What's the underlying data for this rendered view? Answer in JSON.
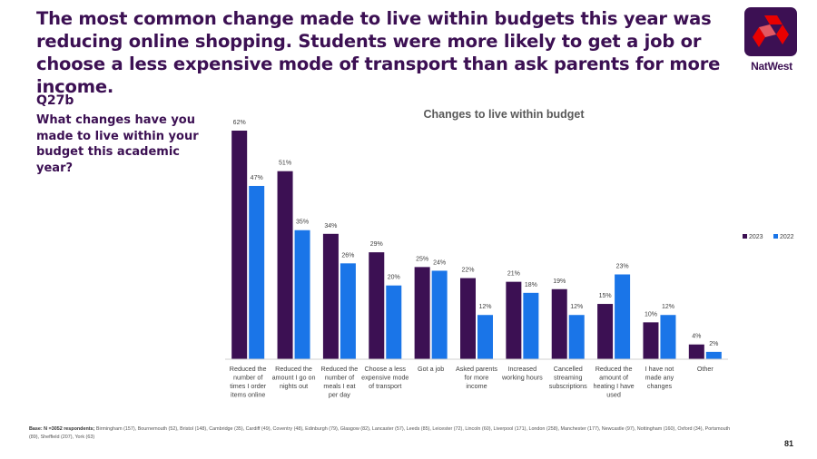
{
  "header": {
    "headline": "The most common change made to live within budgets this year was reducing online shopping. Students were more likely to get a job or choose a less expensive mode of transport than ask parents for more income."
  },
  "logo": {
    "name": "natwest-logo",
    "text": "NatWest"
  },
  "question": {
    "code": "Q27b",
    "text": "What changes have you made to live within your budget this academic year?"
  },
  "colors": {
    "series_2023": "#3c1053",
    "series_2022": "#1a75e8"
  },
  "chart_data": {
    "type": "bar",
    "title": "Changes to live within budget",
    "xlabel": "",
    "ylabel": "",
    "ylim": [
      0,
      65
    ],
    "grid": false,
    "legend": "right",
    "categories": [
      "Reduced the number of times I order items online",
      "Reduced the amount I go on nights out",
      "Reduced the number of meals I eat per day",
      "Choose a less expensive mode of transport",
      "Got a job",
      "Asked parents for more income",
      "Increased working hours",
      "Cancelled streaming subscriptions",
      "Reduced the amount of heating I have used",
      "I have not made any changes",
      "Other"
    ],
    "series": [
      {
        "name": "2023",
        "values": [
          62,
          51,
          34,
          29,
          25,
          22,
          21,
          19,
          15,
          10,
          4
        ]
      },
      {
        "name": "2022",
        "values": [
          47,
          35,
          26,
          20,
          24,
          12,
          18,
          12,
          23,
          12,
          2
        ]
      }
    ],
    "value_suffix": "%"
  },
  "footer": {
    "base_label": "Base: N =3052 respondents;",
    "base_text": " Birmingham (157), Bournemouth (52), Bristol (148), Cambridge (35), Cardiff (49), Coventry (48), Edinburgh (79), Glasgow (82), Lancaster (57), Leeds (85), Leicester (72), Lincoln (60), Liverpool (171), London (258), Manchester (177), Newcastle (97), Nottingham (160), Oxford (34), Portsmouth (89), Sheffield (207), York (63)",
    "page_number": "81"
  }
}
